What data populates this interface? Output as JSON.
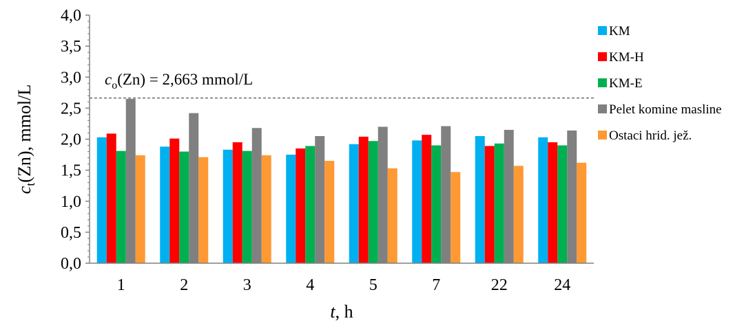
{
  "chart_data": {
    "type": "bar",
    "categories": [
      "1",
      "2",
      "3",
      "4",
      "5",
      "7",
      "22",
      "24"
    ],
    "series": [
      {
        "name": "KM",
        "color": "#00b0f0",
        "values": [
          2.03,
          1.88,
          1.83,
          1.75,
          1.92,
          1.98,
          2.05,
          2.03
        ]
      },
      {
        "name": "KM-H",
        "color": "#ff0000",
        "values": [
          2.09,
          2.01,
          1.95,
          1.85,
          2.04,
          2.07,
          1.89,
          1.95
        ]
      },
      {
        "name": "KM-E",
        "color": "#00b050",
        "values": [
          1.81,
          1.8,
          1.81,
          1.89,
          1.97,
          1.9,
          1.93,
          1.9
        ]
      },
      {
        "name": "Pelet komine masline",
        "color": "#808080",
        "values": [
          2.65,
          2.42,
          2.18,
          2.05,
          2.2,
          2.21,
          2.15,
          2.14
        ]
      },
      {
        "name": "Ostaci hrid. jež.",
        "color": "#ff9933",
        "values": [
          1.74,
          1.71,
          1.74,
          1.65,
          1.53,
          1.47,
          1.57,
          1.62
        ]
      }
    ],
    "xlabel": {
      "var": "t",
      "rest": ", h"
    },
    "ylabel": {
      "var": "c",
      "sub": "t",
      "rest": "(Zn),  mmol/L"
    },
    "ylim": [
      0,
      4.0
    ],
    "y_ticks": [
      "0,0",
      "0,5",
      "1,0",
      "1,5",
      "2,0",
      "2,5",
      "3,0",
      "3,5",
      "4,0"
    ],
    "reference_line": {
      "value": 2.663,
      "label_var": "c",
      "label_sub": "o",
      "label_rest": "(Zn) = 2,663 mmol/L"
    },
    "legend_position": "right",
    "grid": false
  }
}
